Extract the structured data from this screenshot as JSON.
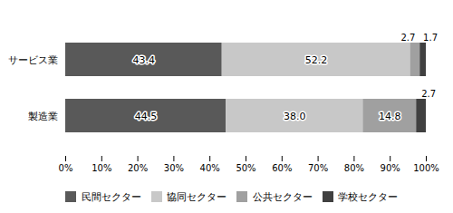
{
  "chart_data": {
    "type": "bar",
    "orientation": "horizontal",
    "stacked": true,
    "categories": [
      "サービス業",
      "製造業"
    ],
    "series": [
      {
        "name": "民間セクター",
        "color": "#595959",
        "values": [
          43.4,
          44.5
        ],
        "value_labels": [
          "43.4",
          "44.5"
        ]
      },
      {
        "name": "協同セクター",
        "color": "#c8c8c8",
        "values": [
          52.2,
          38.0
        ],
        "value_labels": [
          "52.2",
          "38.0"
        ]
      },
      {
        "name": "公共セクター",
        "color": "#a0a0a0",
        "values": [
          2.7,
          14.8
        ],
        "value_labels": [
          "2.7",
          "14.8"
        ]
      },
      {
        "name": "学校セクター",
        "color": "#404040",
        "values": [
          1.7,
          2.7
        ],
        "value_labels": [
          "1.7",
          "2.7"
        ]
      }
    ],
    "xlim": [
      0,
      100
    ],
    "xticks": [
      {
        "value": 0,
        "label": "0%"
      },
      {
        "value": 10,
        "label": "10%"
      },
      {
        "value": 20,
        "label": "20%"
      },
      {
        "value": 30,
        "label": "30%"
      },
      {
        "value": 40,
        "label": "40%"
      },
      {
        "value": 50,
        "label": "50%"
      },
      {
        "value": 60,
        "label": "60%"
      },
      {
        "value": 70,
        "label": "70%"
      },
      {
        "value": 80,
        "label": "80%"
      },
      {
        "value": 90,
        "label": "90%"
      },
      {
        "value": 100,
        "label": "100%"
      }
    ],
    "data_labels": true,
    "grid": false,
    "legend": "bottom"
  }
}
